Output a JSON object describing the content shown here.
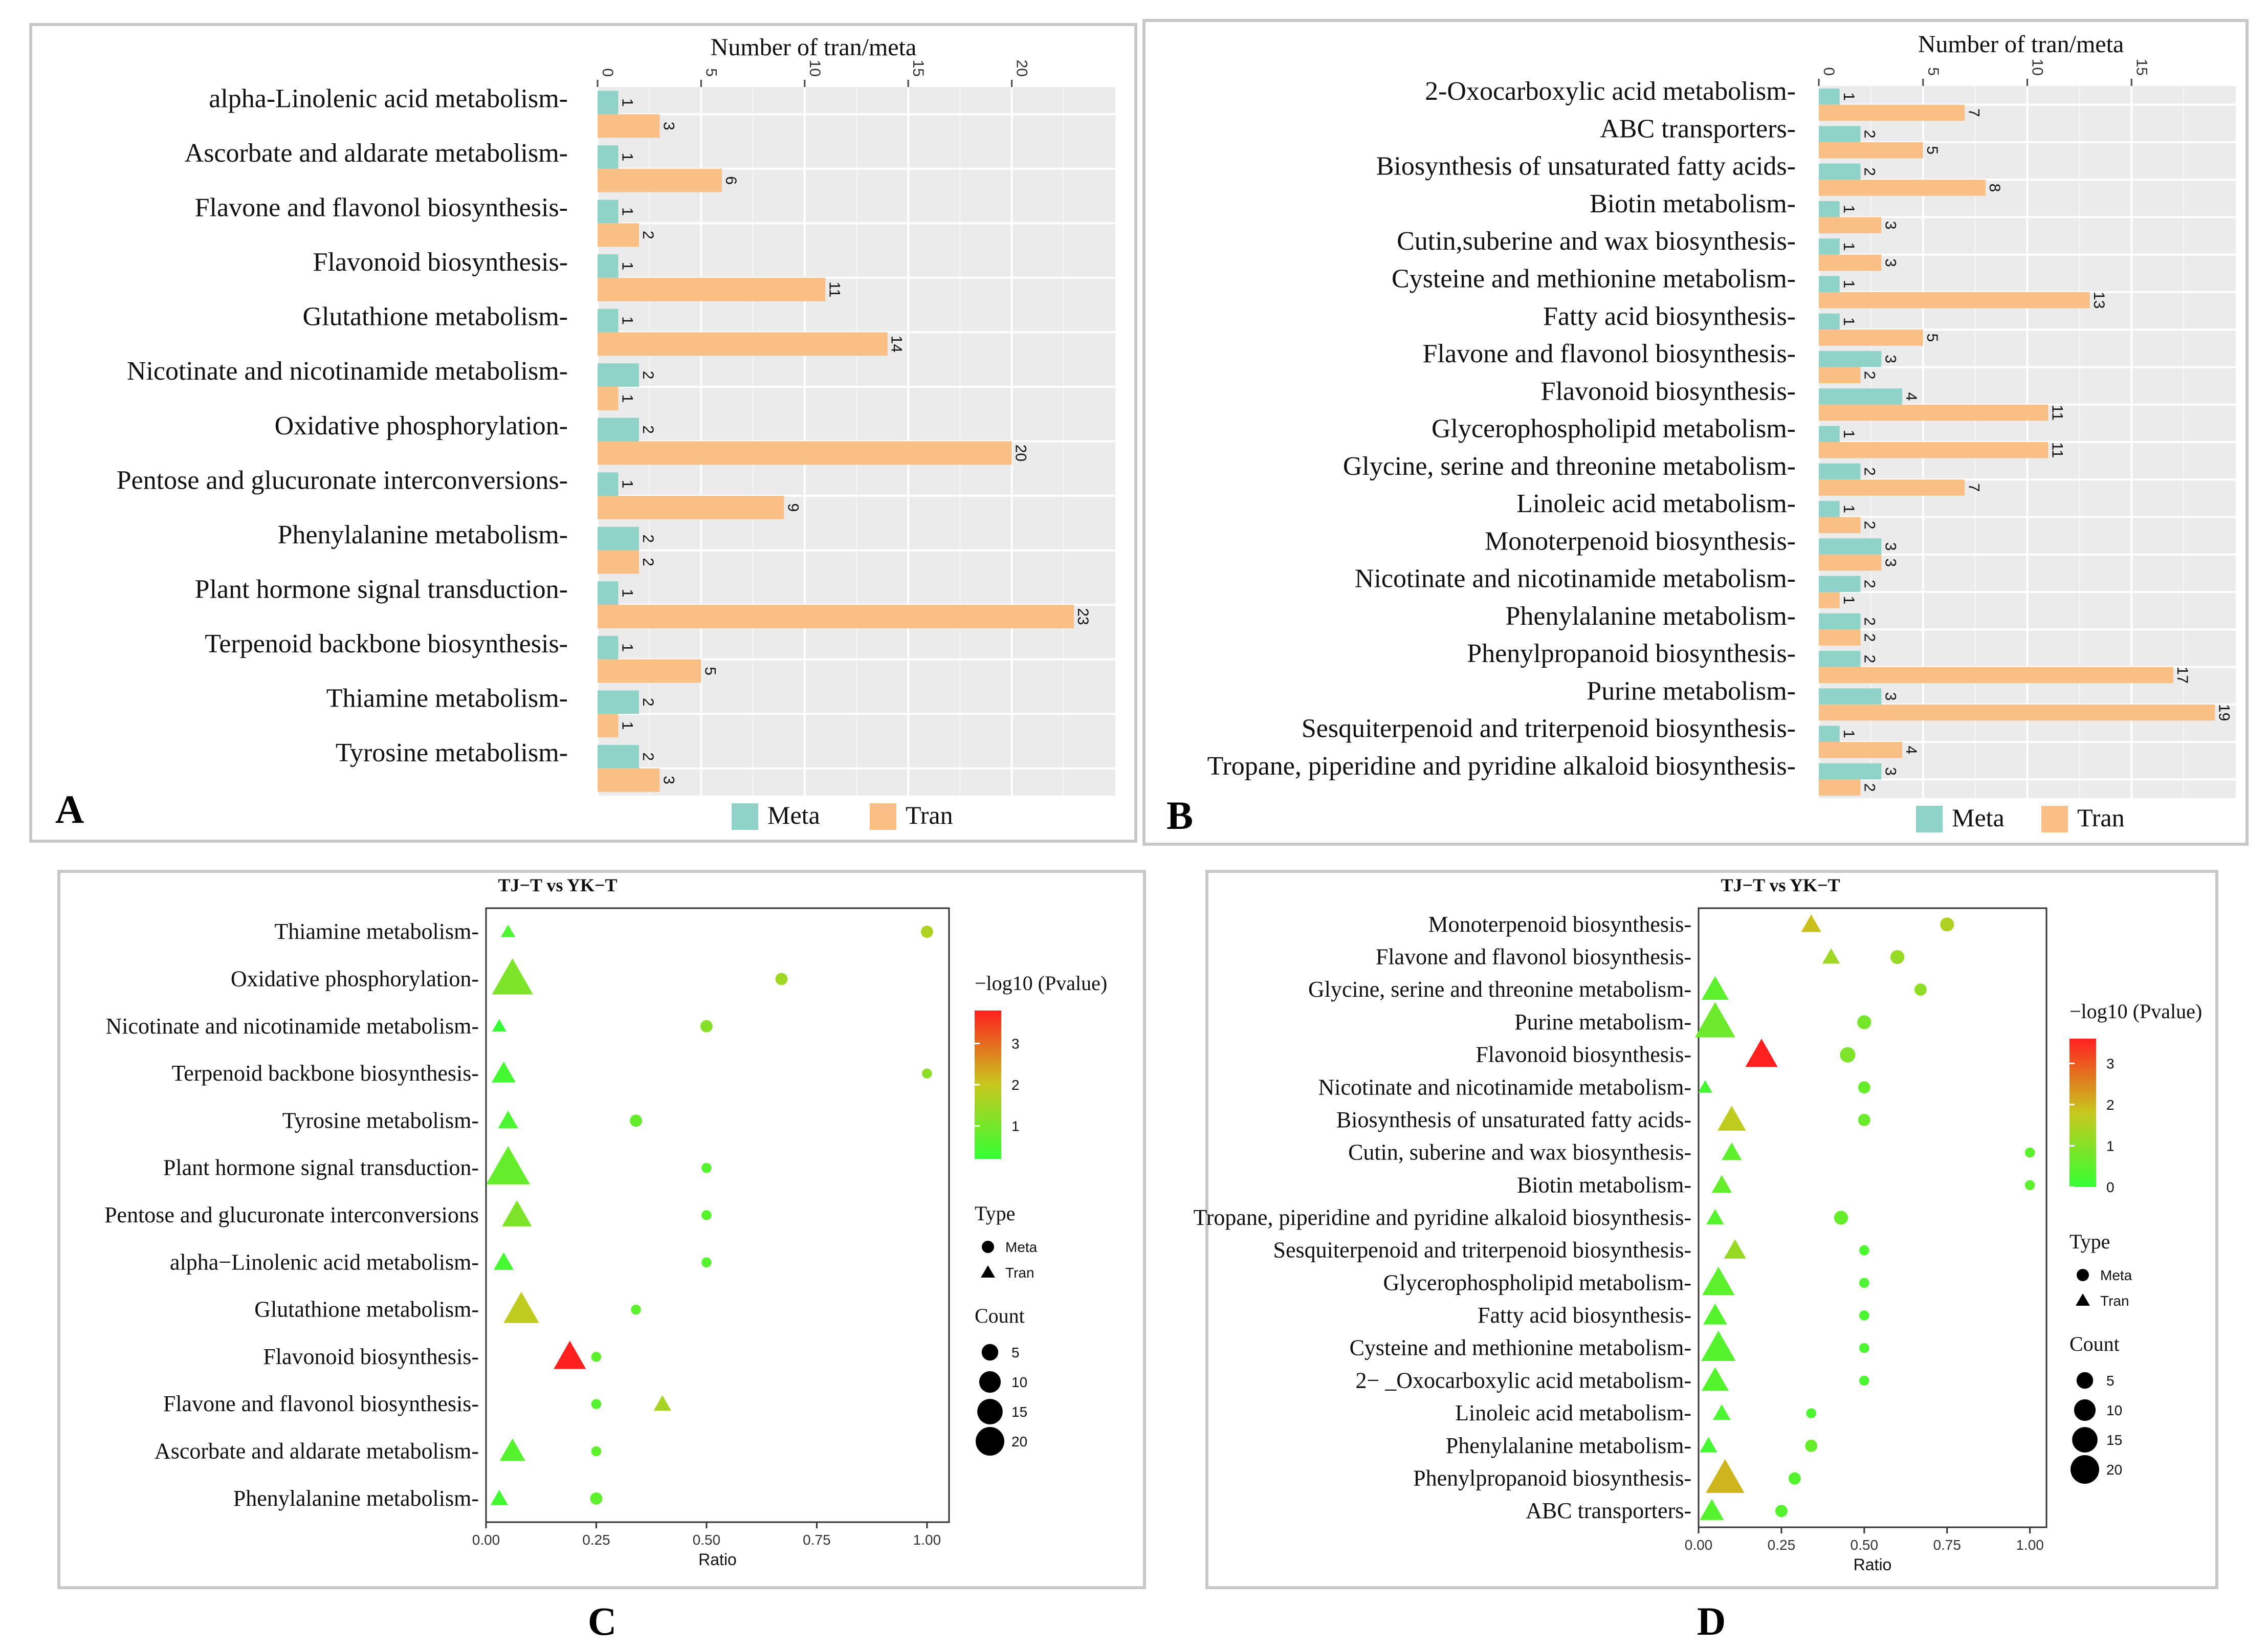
{
  "colors": {
    "meta": "#8fd3c8",
    "tran": "#f9bf85",
    "low": "#33ff33",
    "mid": "#c8c81e",
    "high": "#ff2020"
  },
  "chart_data": [
    {
      "panel": "A",
      "type": "bar",
      "orientation": "horizontal",
      "title": "Number of tran/meta",
      "xlim": [
        0,
        25
      ],
      "xticks": [
        0,
        5,
        10,
        15,
        20
      ],
      "categories": [
        "alpha-Linolenic acid metabolism-",
        "Ascorbate and aldarate metabolism-",
        "Flavone and flavonol biosynthesis-",
        "Flavonoid biosynthesis-",
        "Glutathione metabolism-",
        "Nicotinate and nicotinamide metabolism-",
        "Oxidative phosphorylation-",
        "Pentose and glucuronate interconversions-",
        "Phenylalanine metabolism-",
        "Plant hormone signal transduction-",
        "Terpenoid backbone biosynthesis-",
        "Thiamine metabolism-",
        "Tyrosine metabolism-"
      ],
      "series": [
        {
          "name": "Meta",
          "values": [
            1,
            1,
            1,
            1,
            1,
            2,
            2,
            1,
            2,
            1,
            1,
            2,
            2
          ]
        },
        {
          "name": "Tran",
          "values": [
            3,
            6,
            2,
            11,
            14,
            1,
            20,
            9,
            2,
            23,
            5,
            1,
            3
          ]
        }
      ],
      "legend": [
        "Meta",
        "Tran"
      ],
      "legend_position": "bottom"
    },
    {
      "panel": "B",
      "type": "bar",
      "orientation": "horizontal",
      "title": "Number of tran/meta",
      "xlim": [
        0,
        20
      ],
      "xticks": [
        0,
        5,
        10,
        15
      ],
      "categories": [
        "2-Oxocarboxylic acid metabolism-",
        "ABC transporters-",
        "Biosynthesis of unsaturated fatty acids-",
        "Biotin metabolism-",
        "Cutin,suberine and wax biosynthesis-",
        "Cysteine and methionine metabolism-",
        "Fatty acid biosynthesis-",
        "Flavone and flavonol biosynthesis-",
        "Flavonoid biosynthesis-",
        "Glycerophospholipid metabolism-",
        "Glycine, serine and threonine metabolism-",
        "Linoleic acid metabolism-",
        "Monoterpenoid biosynthesis-",
        "Nicotinate and nicotinamide metabolism-",
        "Phenylalanine metabolism-",
        "Phenylpropanoid biosynthesis-",
        "Purine metabolism-",
        "Sesquiterpenoid and triterpenoid biosynthesis-",
        "Tropane, piperidine and pyridine alkaloid biosynthesis-"
      ],
      "series": [
        {
          "name": "Meta",
          "values": [
            1,
            2,
            2,
            1,
            1,
            1,
            1,
            3,
            4,
            1,
            2,
            1,
            3,
            2,
            2,
            2,
            3,
            1,
            3
          ]
        },
        {
          "name": "Tran",
          "values": [
            7,
            5,
            8,
            3,
            3,
            13,
            5,
            2,
            11,
            11,
            7,
            2,
            3,
            1,
            2,
            17,
            19,
            4,
            2
          ]
        }
      ],
      "legend": [
        "Meta",
        "Tran"
      ],
      "legend_position": "bottom"
    },
    {
      "panel": "C",
      "type": "scatter",
      "title": "TJ−T vs YK−T",
      "xlabel": "Ratio",
      "xlim": [
        0,
        1.05
      ],
      "xticks": [
        "0.00",
        "0.25",
        "0.50",
        "0.75",
        "1.00"
      ],
      "categories": [
        "Thiamine metabolism-",
        "Oxidative phosphorylation-",
        "Nicotinate and nicotinamide metabolism-",
        "Terpenoid backbone biosynthesis-",
        "Tyrosine metabolism-",
        "Plant hormone signal transduction-",
        "Pentose and glucuronate interconversions",
        "alpha−Linolenic acid metabolism-",
        "Glutathione metabolism-",
        "Flavonoid biosynthesis-",
        "Flavone and flavonol biosynthesis-",
        "Ascorbate and aldarate metabolism-",
        "Phenylalanine metabolism-"
      ],
      "series": [
        {
          "name": "Tran",
          "shape": "triangle",
          "ratio": [
            0.05,
            0.06,
            0.03,
            0.04,
            0.05,
            0.05,
            0.07,
            0.04,
            0.08,
            0.19,
            0.4,
            0.06,
            0.03
          ],
          "count": [
            1,
            20,
            1,
            5,
            3,
            23,
            9,
            3,
            14,
            11,
            2,
            6,
            2
          ],
          "neglog10p": [
            0.5,
            1.1,
            0.2,
            0.4,
            0.5,
            0.8,
            1.1,
            0.4,
            1.9,
            3.8,
            1.6,
            0.6,
            0.4
          ]
        },
        {
          "name": "Meta",
          "shape": "circle",
          "ratio": [
            1.0,
            0.67,
            0.5,
            1.0,
            0.34,
            0.5,
            0.5,
            0.5,
            0.34,
            0.25,
            0.25,
            0.25,
            0.25
          ],
          "count": [
            2,
            2,
            2,
            1,
            2,
            1,
            1,
            1,
            1,
            1,
            1,
            1,
            2
          ],
          "neglog10p": [
            1.7,
            1.5,
            1.2,
            1.3,
            0.8,
            0.6,
            0.6,
            0.6,
            0.7,
            0.7,
            0.6,
            0.7,
            0.7
          ]
        }
      ],
      "color_legend": {
        "title": "−log10 (Pvalue)",
        "ticks": [
          "1",
          "2",
          "3"
        ],
        "min": 0.2,
        "max": 3.8
      },
      "type_legend": {
        "title": "Type",
        "items": [
          "Meta",
          "Tran"
        ]
      },
      "count_legend": {
        "title": "Count",
        "items": [
          "5",
          "10",
          "15",
          "20"
        ]
      }
    },
    {
      "panel": "D",
      "type": "scatter",
      "title": "TJ−T vs YK−T",
      "xlabel": "Ratio",
      "xlim": [
        0,
        1.05
      ],
      "xticks": [
        "0.00",
        "0.25",
        "0.50",
        "0.75",
        "1.00"
      ],
      "categories": [
        "Monoterpenoid biosynthesis-",
        "Flavone and flavonol biosynthesis-",
        "Glycine, serine and threonine metabolism-",
        "Purine metabolism-",
        "Flavonoid biosynthesis-",
        "Nicotinate and nicotinamide metabolism-",
        "Biosynthesis of unsaturated fatty acids-",
        "Cutin, suberine and wax biosynthesis-",
        "Biotin metabolism-",
        "Tropane, piperidine and pyridine alkaloid biosynthesis-",
        "Sesquiterpenoid and triterpenoid biosynthesis-",
        "Glycerophospholipid metabolism-",
        "Fatty acid biosynthesis-",
        "Cysteine and methionine metabolism-",
        "2− _Oxocarboxylic acid metabolism-",
        "Linoleic acid metabolism-",
        "Phenylalanine metabolism-",
        "Phenylpropanoid biosynthesis-",
        "ABC transporters-"
      ],
      "series": [
        {
          "name": "Tran",
          "shape": "triangle",
          "ratio": [
            0.34,
            0.4,
            0.05,
            0.05,
            0.19,
            0.02,
            0.1,
            0.1,
            0.07,
            0.05,
            0.11,
            0.06,
            0.05,
            0.06,
            0.05,
            0.07,
            0.03,
            0.08,
            0.04
          ],
          "count": [
            3,
            2,
            7,
            19,
            11,
            1,
            8,
            3,
            3,
            2,
            4,
            11,
            5,
            13,
            7,
            2,
            2,
            17,
            5
          ],
          "neglog10p": [
            1.9,
            1.3,
            0.5,
            0.7,
            3.6,
            0.2,
            1.7,
            0.5,
            0.6,
            0.4,
            1.2,
            0.5,
            0.4,
            0.4,
            0.4,
            0.3,
            0.2,
            2.0,
            0.4
          ]
        },
        {
          "name": "Meta",
          "shape": "circle",
          "ratio": [
            0.75,
            0.6,
            0.67,
            0.5,
            0.45,
            0.5,
            0.5,
            1.0,
            1.0,
            0.43,
            0.5,
            0.5,
            0.5,
            0.5,
            0.5,
            0.34,
            0.34,
            0.29,
            0.25
          ],
          "count": [
            3,
            3,
            2,
            3,
            4,
            2,
            2,
            1,
            1,
            3,
            1,
            1,
            1,
            1,
            1,
            1,
            2,
            2,
            2
          ],
          "neglog10p": [
            1.5,
            1.2,
            1.1,
            0.8,
            0.9,
            0.6,
            0.7,
            0.5,
            0.5,
            0.6,
            0.3,
            0.3,
            0.3,
            0.3,
            0.3,
            0.3,
            0.6,
            0.4,
            0.4
          ]
        }
      ],
      "color_legend": {
        "title": "−log10 (Pvalue)",
        "ticks": [
          "0",
          "1",
          "2",
          "3"
        ],
        "min": 0,
        "max": 3.6
      },
      "type_legend": {
        "title": "Type",
        "items": [
          "Meta",
          "Tran"
        ]
      },
      "count_legend": {
        "title": "Count",
        "items": [
          "5",
          "10",
          "15",
          "20"
        ]
      }
    }
  ]
}
